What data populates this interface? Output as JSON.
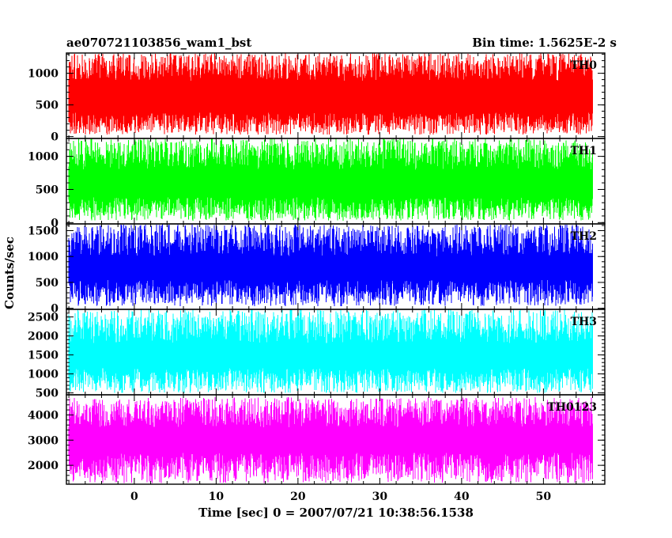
{
  "chart_data": {
    "type": "line",
    "title_left": "ae070721103856_wam1_bst",
    "title_right": "Bin time: 1.5625E-2 s",
    "xlabel": "Time [sec] 0 = 2007/07/21 10:38:56.1538",
    "ylabel": "Counts/sec",
    "xlim": [
      -8.3,
      57.5
    ],
    "x_data_range": [
      -8.0,
      56.0
    ],
    "x_ticks": [
      0,
      10,
      20,
      30,
      40,
      50
    ],
    "x_tick_labels": [
      "0",
      "10",
      "20",
      "30",
      "40",
      "50"
    ],
    "grid": false,
    "panels": [
      {
        "name": "TH0",
        "color": "#ff0000",
        "ylim": [
          -30,
          1320
        ],
        "y_ticks": [
          0,
          500,
          1000
        ],
        "y_tick_labels": [
          "0",
          "500",
          "1000"
        ],
        "level_low": 380,
        "level_high": 880,
        "min": 30,
        "max": 1320
      },
      {
        "name": "TH1",
        "color": "#00ff00",
        "ylim": [
          -20,
          1270
        ],
        "y_ticks": [
          0,
          500,
          1000
        ],
        "y_tick_labels": [
          "0",
          "500",
          "1000"
        ],
        "level_low": 380,
        "level_high": 800,
        "min": 30,
        "max": 1270
      },
      {
        "name": "TH2",
        "color": "#0000ff",
        "ylim": [
          -20,
          1630
        ],
        "y_ticks": [
          0,
          500,
          1000,
          1500
        ],
        "y_tick_labels": [
          "0",
          "500",
          "1000",
          "1500"
        ],
        "level_low": 550,
        "level_high": 1000,
        "min": 40,
        "max": 1620
      },
      {
        "name": "TH3",
        "color": "#00ffff",
        "ylim": [
          450,
          2700
        ],
        "y_ticks": [
          500,
          1000,
          1500,
          2000,
          2500
        ],
        "y_tick_labels": [
          "500",
          "1000",
          "1500",
          "2000",
          "2500"
        ],
        "level_low": 1150,
        "level_high": 1800,
        "min": 500,
        "max": 2700
      },
      {
        "name": "TH0123",
        "color": "#ff00ff",
        "ylim": [
          1250,
          4800
        ],
        "y_ticks": [
          2000,
          3000,
          4000
        ],
        "y_tick_labels": [
          "2000",
          "3000",
          "4000"
        ],
        "level_low": 2500,
        "level_high": 3500,
        "min": 1300,
        "max": 4700
      }
    ]
  }
}
